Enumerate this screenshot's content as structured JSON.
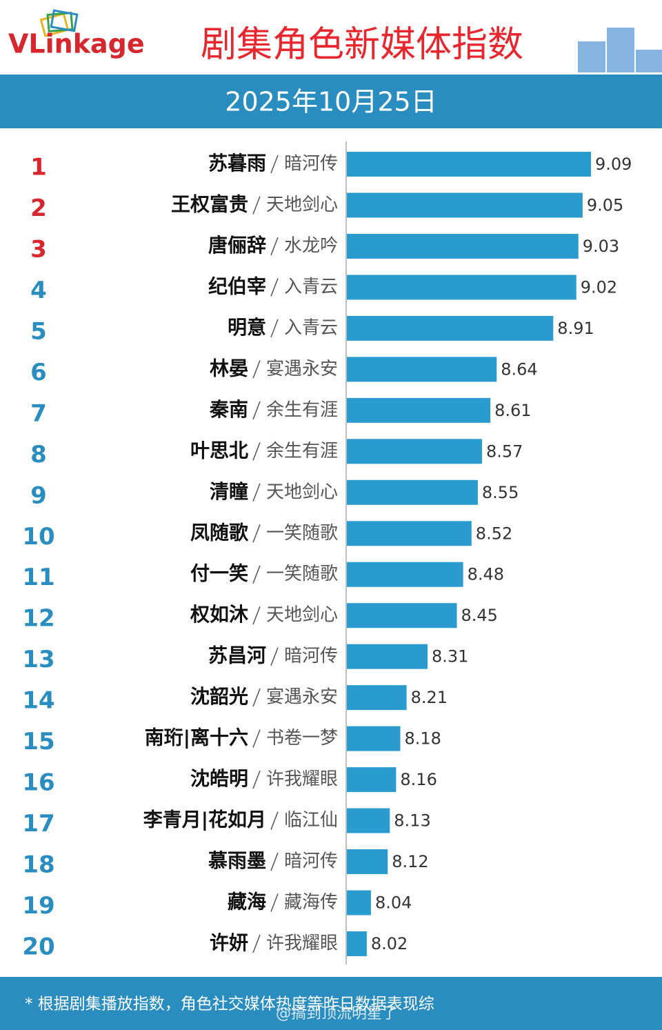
{
  "header": {
    "logo": "VLinkage",
    "title": "剧集角色新媒体指数",
    "date": "2025年10月25日"
  },
  "chart_data": {
    "type": "bar",
    "orientation": "horizontal",
    "ranks": [
      1,
      2,
      3,
      4,
      5,
      6,
      7,
      8,
      9,
      10,
      11,
      12,
      13,
      14,
      15,
      16,
      17,
      18,
      19,
      20
    ],
    "rank_colors": [
      "#d7262d",
      "#d7262d",
      "#d7262d",
      "#2a8dc0",
      "#2a8dc0",
      "#2a8dc0",
      "#2a8dc0",
      "#2a8dc0",
      "#2a8dc0",
      "#2a8dc0",
      "#2a8dc0",
      "#2a8dc0",
      "#2a8dc0",
      "#2a8dc0",
      "#2a8dc0",
      "#2a8dc0",
      "#2a8dc0",
      "#2a8dc0",
      "#2a8dc0",
      "#2a8dc0"
    ],
    "categories": [
      "苏暮雨",
      "王权富贵",
      "唐俪辞",
      "纪伯宰",
      "明意",
      "林晏",
      "秦南",
      "叶思北",
      "清瞳",
      "凤随歌",
      "付一笑",
      "权如沐",
      "苏昌河",
      "沈韶光",
      "南珩|离十六",
      "沈皓明",
      "李青月|花如月",
      "慕雨墨",
      "藏海",
      "许妍"
    ],
    "dramas": [
      "暗河传",
      "天地剑心",
      "水龙吟",
      "入青云",
      "入青云",
      "宴遇永安",
      "余生有涯",
      "余生有涯",
      "天地剑心",
      "一笑随歌",
      "一笑随歌",
      "天地剑心",
      "暗河传",
      "宴遇永安",
      "书卷一梦",
      "许我耀眼",
      "临江仙",
      "暗河传",
      "藏海传",
      "许我耀眼"
    ],
    "values": [
      9.09,
      9.05,
      9.03,
      9.02,
      8.91,
      8.64,
      8.61,
      8.57,
      8.55,
      8.52,
      8.48,
      8.45,
      8.31,
      8.21,
      8.18,
      8.16,
      8.13,
      8.12,
      8.04,
      8.02
    ],
    "color": "#2a9bcf",
    "xlim": [
      7.925,
      9.09
    ]
  },
  "footer": {
    "note": "* 根据剧集播放指数，角色社交媒体热度等昨日数据表现综",
    "watermark": "@搞到顶流明星了"
  }
}
